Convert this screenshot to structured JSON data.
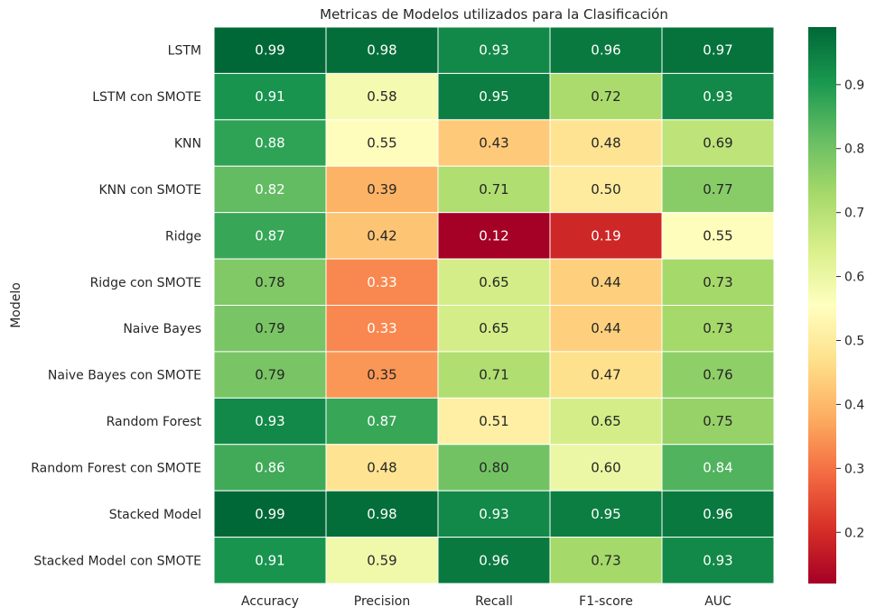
{
  "chart_data": {
    "type": "heatmap",
    "title": "Metricas de Modelos utilizados para la Clasificación",
    "ylabel": "Modelo",
    "xlabel": "",
    "columns": [
      "Accuracy",
      "Precision",
      "Recall",
      "F1-score",
      "AUC"
    ],
    "rows": [
      "LSTM",
      "LSTM con SMOTE",
      "KNN",
      "KNN con SMOTE",
      "Ridge",
      "Ridge con SMOTE",
      "Naive Bayes",
      "Naive Bayes con SMOTE",
      "Random Forest",
      "Random Forest con SMOTE",
      "Stacked Model",
      "Stacked Model con SMOTE"
    ],
    "values": [
      [
        0.99,
        0.98,
        0.93,
        0.96,
        0.97
      ],
      [
        0.91,
        0.58,
        0.95,
        0.72,
        0.93
      ],
      [
        0.88,
        0.55,
        0.43,
        0.48,
        0.69
      ],
      [
        0.82,
        0.39,
        0.71,
        0.5,
        0.77
      ],
      [
        0.87,
        0.42,
        0.12,
        0.19,
        0.55
      ],
      [
        0.78,
        0.33,
        0.65,
        0.44,
        0.73
      ],
      [
        0.79,
        0.33,
        0.65,
        0.44,
        0.73
      ],
      [
        0.79,
        0.35,
        0.71,
        0.47,
        0.76
      ],
      [
        0.93,
        0.87,
        0.51,
        0.65,
        0.75
      ],
      [
        0.86,
        0.48,
        0.8,
        0.6,
        0.84
      ],
      [
        0.99,
        0.98,
        0.93,
        0.95,
        0.96
      ],
      [
        0.91,
        0.59,
        0.96,
        0.73,
        0.93
      ]
    ],
    "labels": [
      [
        "0.99",
        "0.98",
        "0.93",
        "0.96",
        "0.97"
      ],
      [
        "0.91",
        "0.58",
        "0.95",
        "0.72",
        "0.93"
      ],
      [
        "0.88",
        "0.55",
        "0.43",
        "0.48",
        "0.69"
      ],
      [
        "0.82",
        "0.39",
        "0.71",
        "0.50",
        "0.77"
      ],
      [
        "0.87",
        "0.42",
        "0.12",
        "0.19",
        "0.55"
      ],
      [
        "0.78",
        "0.33",
        "0.65",
        "0.44",
        "0.73"
      ],
      [
        "0.79",
        "0.33",
        "0.65",
        "0.44",
        "0.73"
      ],
      [
        "0.79",
        "0.35",
        "0.71",
        "0.47",
        "0.76"
      ],
      [
        "0.93",
        "0.87",
        "0.51",
        "0.65",
        "0.75"
      ],
      [
        "0.86",
        "0.48",
        "0.80",
        "0.60",
        "0.84"
      ],
      [
        "0.99",
        "0.98",
        "0.93",
        "0.95",
        "0.96"
      ],
      [
        "0.91",
        "0.59",
        "0.96",
        "0.73",
        "0.93"
      ]
    ],
    "colormap": "RdYlGn",
    "vmin": 0.12,
    "vmax": 0.99,
    "colorbar_ticks": [
      0.2,
      0.3,
      0.4,
      0.5,
      0.6,
      0.7,
      0.8,
      0.9
    ],
    "colorbar_tick_labels": [
      "0.2",
      "0.3",
      "0.4",
      "0.5",
      "0.6",
      "0.7",
      "0.8",
      "0.9"
    ],
    "colormap_stops": [
      "#a50026",
      "#d73027",
      "#f46d43",
      "#fdae61",
      "#fee08b",
      "#ffffbf",
      "#d9ef8b",
      "#a6d96a",
      "#66bd63",
      "#1a9850",
      "#006837"
    ],
    "dark_text_color": "#262626",
    "light_text_color": "#ffffff"
  }
}
